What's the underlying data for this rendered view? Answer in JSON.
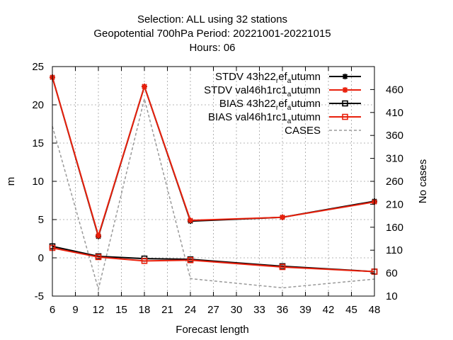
{
  "chart_data": {
    "type": "line",
    "title_lines": [
      "Selection: ALL using    32 stations",
      "Geopotential 700hPa   Period: 20221001-20221015",
      "Hours:  06"
    ],
    "xlabel": "Forecast length",
    "ylabel": "m",
    "y2label": "No cases",
    "xlim": [
      6,
      48
    ],
    "ylim": [
      -5,
      25
    ],
    "y2lim": [
      10,
      510
    ],
    "xticks": [
      6,
      9,
      12,
      15,
      18,
      21,
      24,
      27,
      30,
      33,
      36,
      39,
      42,
      45,
      48
    ],
    "yticks": [
      -5,
      0,
      5,
      10,
      15,
      20,
      25
    ],
    "y2ticks": [
      10,
      60,
      110,
      160,
      210,
      260,
      310,
      360,
      410,
      460
    ],
    "grid": true,
    "legend_position": "top-right",
    "series": [
      {
        "name": "STDV 43h22_ref_autumn",
        "legend_main": "STDV 43h22",
        "legend_sub1": "r",
        "legend_mid": "ef",
        "legend_sub2": "a",
        "legend_tail": "utumn",
        "axis": "y",
        "color": "#000000",
        "marker": "star",
        "x": [
          6,
          12,
          18,
          24,
          36,
          48
        ],
        "values": [
          23.6,
          2.8,
          22.4,
          4.8,
          5.3,
          7.4
        ]
      },
      {
        "name": "STDV val46h1rc1_autumn",
        "legend_main": "STDV val46h1rc1",
        "legend_sub2": "a",
        "legend_tail": "utumn",
        "axis": "y",
        "color": "#e8200c",
        "marker": "star",
        "x": [
          6,
          12,
          18,
          24,
          36,
          48
        ],
        "values": [
          23.6,
          2.9,
          22.4,
          4.9,
          5.3,
          7.3
        ]
      },
      {
        "name": "BIAS 43h22_ref_autumn",
        "legend_main": "BIAS 43h22",
        "legend_sub1": "r",
        "legend_mid": "ef",
        "legend_sub2": "a",
        "legend_tail": "utumn",
        "axis": "y",
        "color": "#000000",
        "marker": "square",
        "x": [
          6,
          12,
          18,
          24,
          36,
          48
        ],
        "values": [
          1.5,
          0.2,
          -0.1,
          -0.2,
          -1.1,
          -1.8
        ]
      },
      {
        "name": "BIAS val46h1rc1_autumn",
        "legend_main": "BIAS val46h1rc1",
        "legend_sub2": "a",
        "legend_tail": "utumn",
        "axis": "y",
        "color": "#e8200c",
        "marker": "square",
        "x": [
          6,
          12,
          18,
          24,
          36,
          48
        ],
        "values": [
          1.3,
          0.1,
          -0.4,
          -0.3,
          -1.2,
          -1.8
        ]
      },
      {
        "name": "CASES",
        "legend_main": "CASES",
        "axis": "y2",
        "color": "#999999",
        "marker": "none",
        "dashed": true,
        "x": [
          6,
          12,
          18,
          24,
          36,
          48
        ],
        "values": [
          380,
          25,
          440,
          48,
          28,
          47
        ]
      }
    ]
  }
}
